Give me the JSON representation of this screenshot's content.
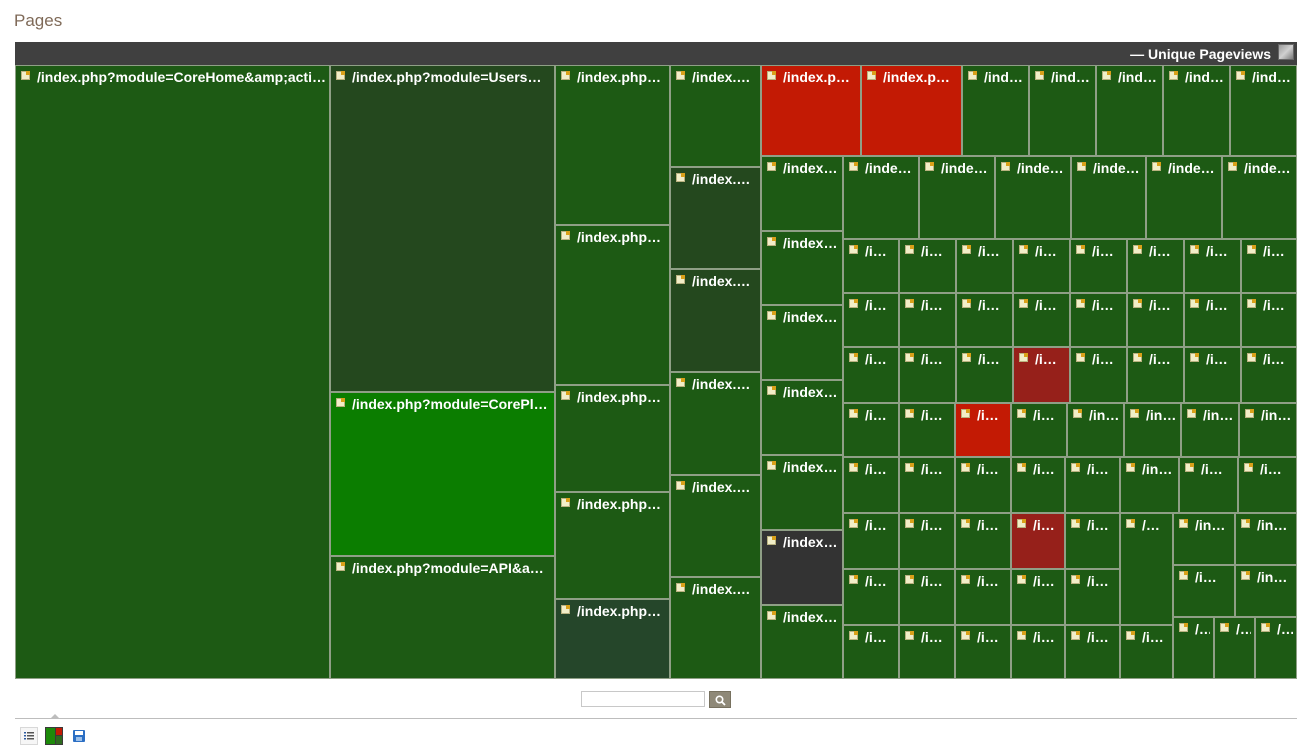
{
  "page": {
    "title": "Pages",
    "legend_label": "— Unique Pageviews",
    "search": {
      "value": "",
      "placeholder": ""
    },
    "footer_icons": [
      "table-view-icon",
      "treemap-view-icon",
      "export-icon"
    ]
  },
  "chart_data": {
    "type": "treemap",
    "title": "Pages",
    "metric": "Unique Pageviews",
    "legend_placement": "top-right",
    "colors": {
      "neutral": "#1d5a14",
      "dark_green": "#24481e",
      "bright_green": "#0b7d00",
      "red": "#c31a04",
      "dark_red": "#96201a",
      "dark_gray": "#333333"
    },
    "cells": [
      {
        "label": "/index.php?module=CoreHome&amp;actio…",
        "color": "#1d5a14"
      },
      {
        "label": "/index.php?module=UsersM…",
        "color": "#24481e"
      },
      {
        "label": "/index.php?module=CorePlu…",
        "color": "#0b7d00"
      },
      {
        "label": "/index.php?module=API&am…",
        "color": "#1d5a14"
      },
      {
        "label": "/index.php…",
        "color": "#1d5a14"
      },
      {
        "label": "/index.php…",
        "color": "#1d5a14"
      },
      {
        "label": "/index.php…",
        "color": "#1d5a14"
      },
      {
        "label": "/index.php…",
        "color": "#1d5a14"
      },
      {
        "label": "/index.php…",
        "color": "#25462a"
      },
      {
        "label": "/index.…",
        "color": "#1d5a14"
      },
      {
        "label": "/index.…",
        "color": "#24481e"
      },
      {
        "label": "/index.…",
        "color": "#24481e"
      },
      {
        "label": "/index.…",
        "color": "#1d5a14"
      },
      {
        "label": "/index.…",
        "color": "#1d5a14"
      },
      {
        "label": "/index.…",
        "color": "#1d5a14"
      },
      {
        "label": "/index.ph…",
        "color": "#c31a04"
      },
      {
        "label": "/index.ph…",
        "color": "#c31a04"
      },
      {
        "label": "/ind…",
        "color": "#1d5a14"
      },
      {
        "label": "/ind…",
        "color": "#1d5a14"
      },
      {
        "label": "/ind…",
        "color": "#1d5a14"
      },
      {
        "label": "/ind…",
        "color": "#1d5a14"
      },
      {
        "label": "/ind…",
        "color": "#1d5a14"
      },
      {
        "label": "/index.…",
        "color": "#1d5a14"
      },
      {
        "label": "/index.…",
        "color": "#1d5a14"
      },
      {
        "label": "/index.…",
        "color": "#1d5a14"
      },
      {
        "label": "/index.…",
        "color": "#1d5a14"
      },
      {
        "label": "/index.…",
        "color": "#1d5a14"
      },
      {
        "label": "/index.…",
        "color": "#333333"
      },
      {
        "label": "/index.…",
        "color": "#1d5a14"
      },
      {
        "label": "/inde…",
        "color": "#1d5a14"
      },
      {
        "label": "/inde…",
        "color": "#1d5a14"
      },
      {
        "label": "/inde…",
        "color": "#1d5a14"
      },
      {
        "label": "/inde…",
        "color": "#1d5a14"
      },
      {
        "label": "/inde…",
        "color": "#1d5a14"
      },
      {
        "label": "/inde…",
        "color": "#1d5a14"
      },
      {
        "label": "/i…",
        "color": "#1d5a14"
      },
      {
        "label": "/i…",
        "color": "#1d5a14"
      },
      {
        "label": "/i…",
        "color": "#1d5a14"
      },
      {
        "label": "/i…",
        "color": "#1d5a14"
      },
      {
        "label": "/i…",
        "color": "#1d5a14"
      },
      {
        "label": "/i…",
        "color": "#1d5a14"
      },
      {
        "label": "/i…",
        "color": "#1d5a14"
      },
      {
        "label": "/i…",
        "color": "#1d5a14"
      },
      {
        "label": "/i…",
        "color": "#1d5a14"
      },
      {
        "label": "/i…",
        "color": "#1d5a14"
      },
      {
        "label": "/i…",
        "color": "#1d5a14"
      },
      {
        "label": "/i…",
        "color": "#1d5a14"
      },
      {
        "label": "/i…",
        "color": "#1d5a14"
      },
      {
        "label": "/i…",
        "color": "#1d5a14"
      },
      {
        "label": "/i…",
        "color": "#1d5a14"
      },
      {
        "label": "/i…",
        "color": "#1d5a14"
      },
      {
        "label": "/i…",
        "color": "#1d5a14"
      },
      {
        "label": "/i…",
        "color": "#1d5a14"
      },
      {
        "label": "/i…",
        "color": "#1d5a14"
      },
      {
        "label": "/i…",
        "color": "#96201a"
      },
      {
        "label": "/i…",
        "color": "#1d5a14"
      },
      {
        "label": "/i…",
        "color": "#1d5a14"
      },
      {
        "label": "/i…",
        "color": "#1d5a14"
      },
      {
        "label": "/i…",
        "color": "#1d5a14"
      },
      {
        "label": "/i…",
        "color": "#1d5a14"
      },
      {
        "label": "/i…",
        "color": "#1d5a14"
      },
      {
        "label": "/i…",
        "color": "#c31a04"
      },
      {
        "label": "/i…",
        "color": "#1d5a14"
      },
      {
        "label": "/in…",
        "color": "#1d5a14"
      },
      {
        "label": "/in…",
        "color": "#1d5a14"
      },
      {
        "label": "/in…",
        "color": "#1d5a14"
      },
      {
        "label": "/in…",
        "color": "#1d5a14"
      },
      {
        "label": "/i…",
        "color": "#1d5a14"
      },
      {
        "label": "/i…",
        "color": "#1d5a14"
      },
      {
        "label": "/i…",
        "color": "#1d5a14"
      },
      {
        "label": "/i…",
        "color": "#1d5a14"
      },
      {
        "label": "/i…",
        "color": "#1d5a14"
      },
      {
        "label": "/in…",
        "color": "#1d5a14"
      },
      {
        "label": "/in…",
        "color": "#1d5a14"
      },
      {
        "label": "/i…",
        "color": "#1d5a14"
      },
      {
        "label": "/i…",
        "color": "#1d5a14"
      },
      {
        "label": "/i…",
        "color": "#1d5a14"
      },
      {
        "label": "/i…",
        "color": "#1d5a14"
      },
      {
        "label": "/i…",
        "color": "#1d5a14"
      },
      {
        "label": "/i…",
        "color": "#96201a"
      },
      {
        "label": "/i…",
        "color": "#1d5a14"
      },
      {
        "label": "/…",
        "color": "#1d5a14"
      },
      {
        "label": "/in…",
        "color": "#1d5a14"
      },
      {
        "label": "/in…",
        "color": "#1d5a14"
      },
      {
        "label": "/i…",
        "color": "#1d5a14"
      },
      {
        "label": "/i…",
        "color": "#1d5a14"
      },
      {
        "label": "/i…",
        "color": "#1d5a14"
      },
      {
        "label": "/i…",
        "color": "#1d5a14"
      },
      {
        "label": "/i…",
        "color": "#1d5a14"
      },
      {
        "label": "/i…",
        "color": "#1d5a14"
      },
      {
        "label": "/in…",
        "color": "#1d5a14"
      },
      {
        "label": "/in…",
        "color": "#1d5a14"
      },
      {
        "label": "/i…",
        "color": "#1d5a14"
      },
      {
        "label": "/i…",
        "color": "#1d5a14"
      },
      {
        "label": "/i…",
        "color": "#1d5a14"
      },
      {
        "label": "/i…",
        "color": "#1d5a14"
      },
      {
        "label": "/i…",
        "color": "#1d5a14"
      },
      {
        "label": "/i…",
        "color": "#1d5a14"
      },
      {
        "label": "/in",
        "color": "#1d5a14"
      },
      {
        "label": "/in",
        "color": "#1d5a14"
      },
      {
        "label": "/in",
        "color": "#1d5a14"
      }
    ]
  }
}
